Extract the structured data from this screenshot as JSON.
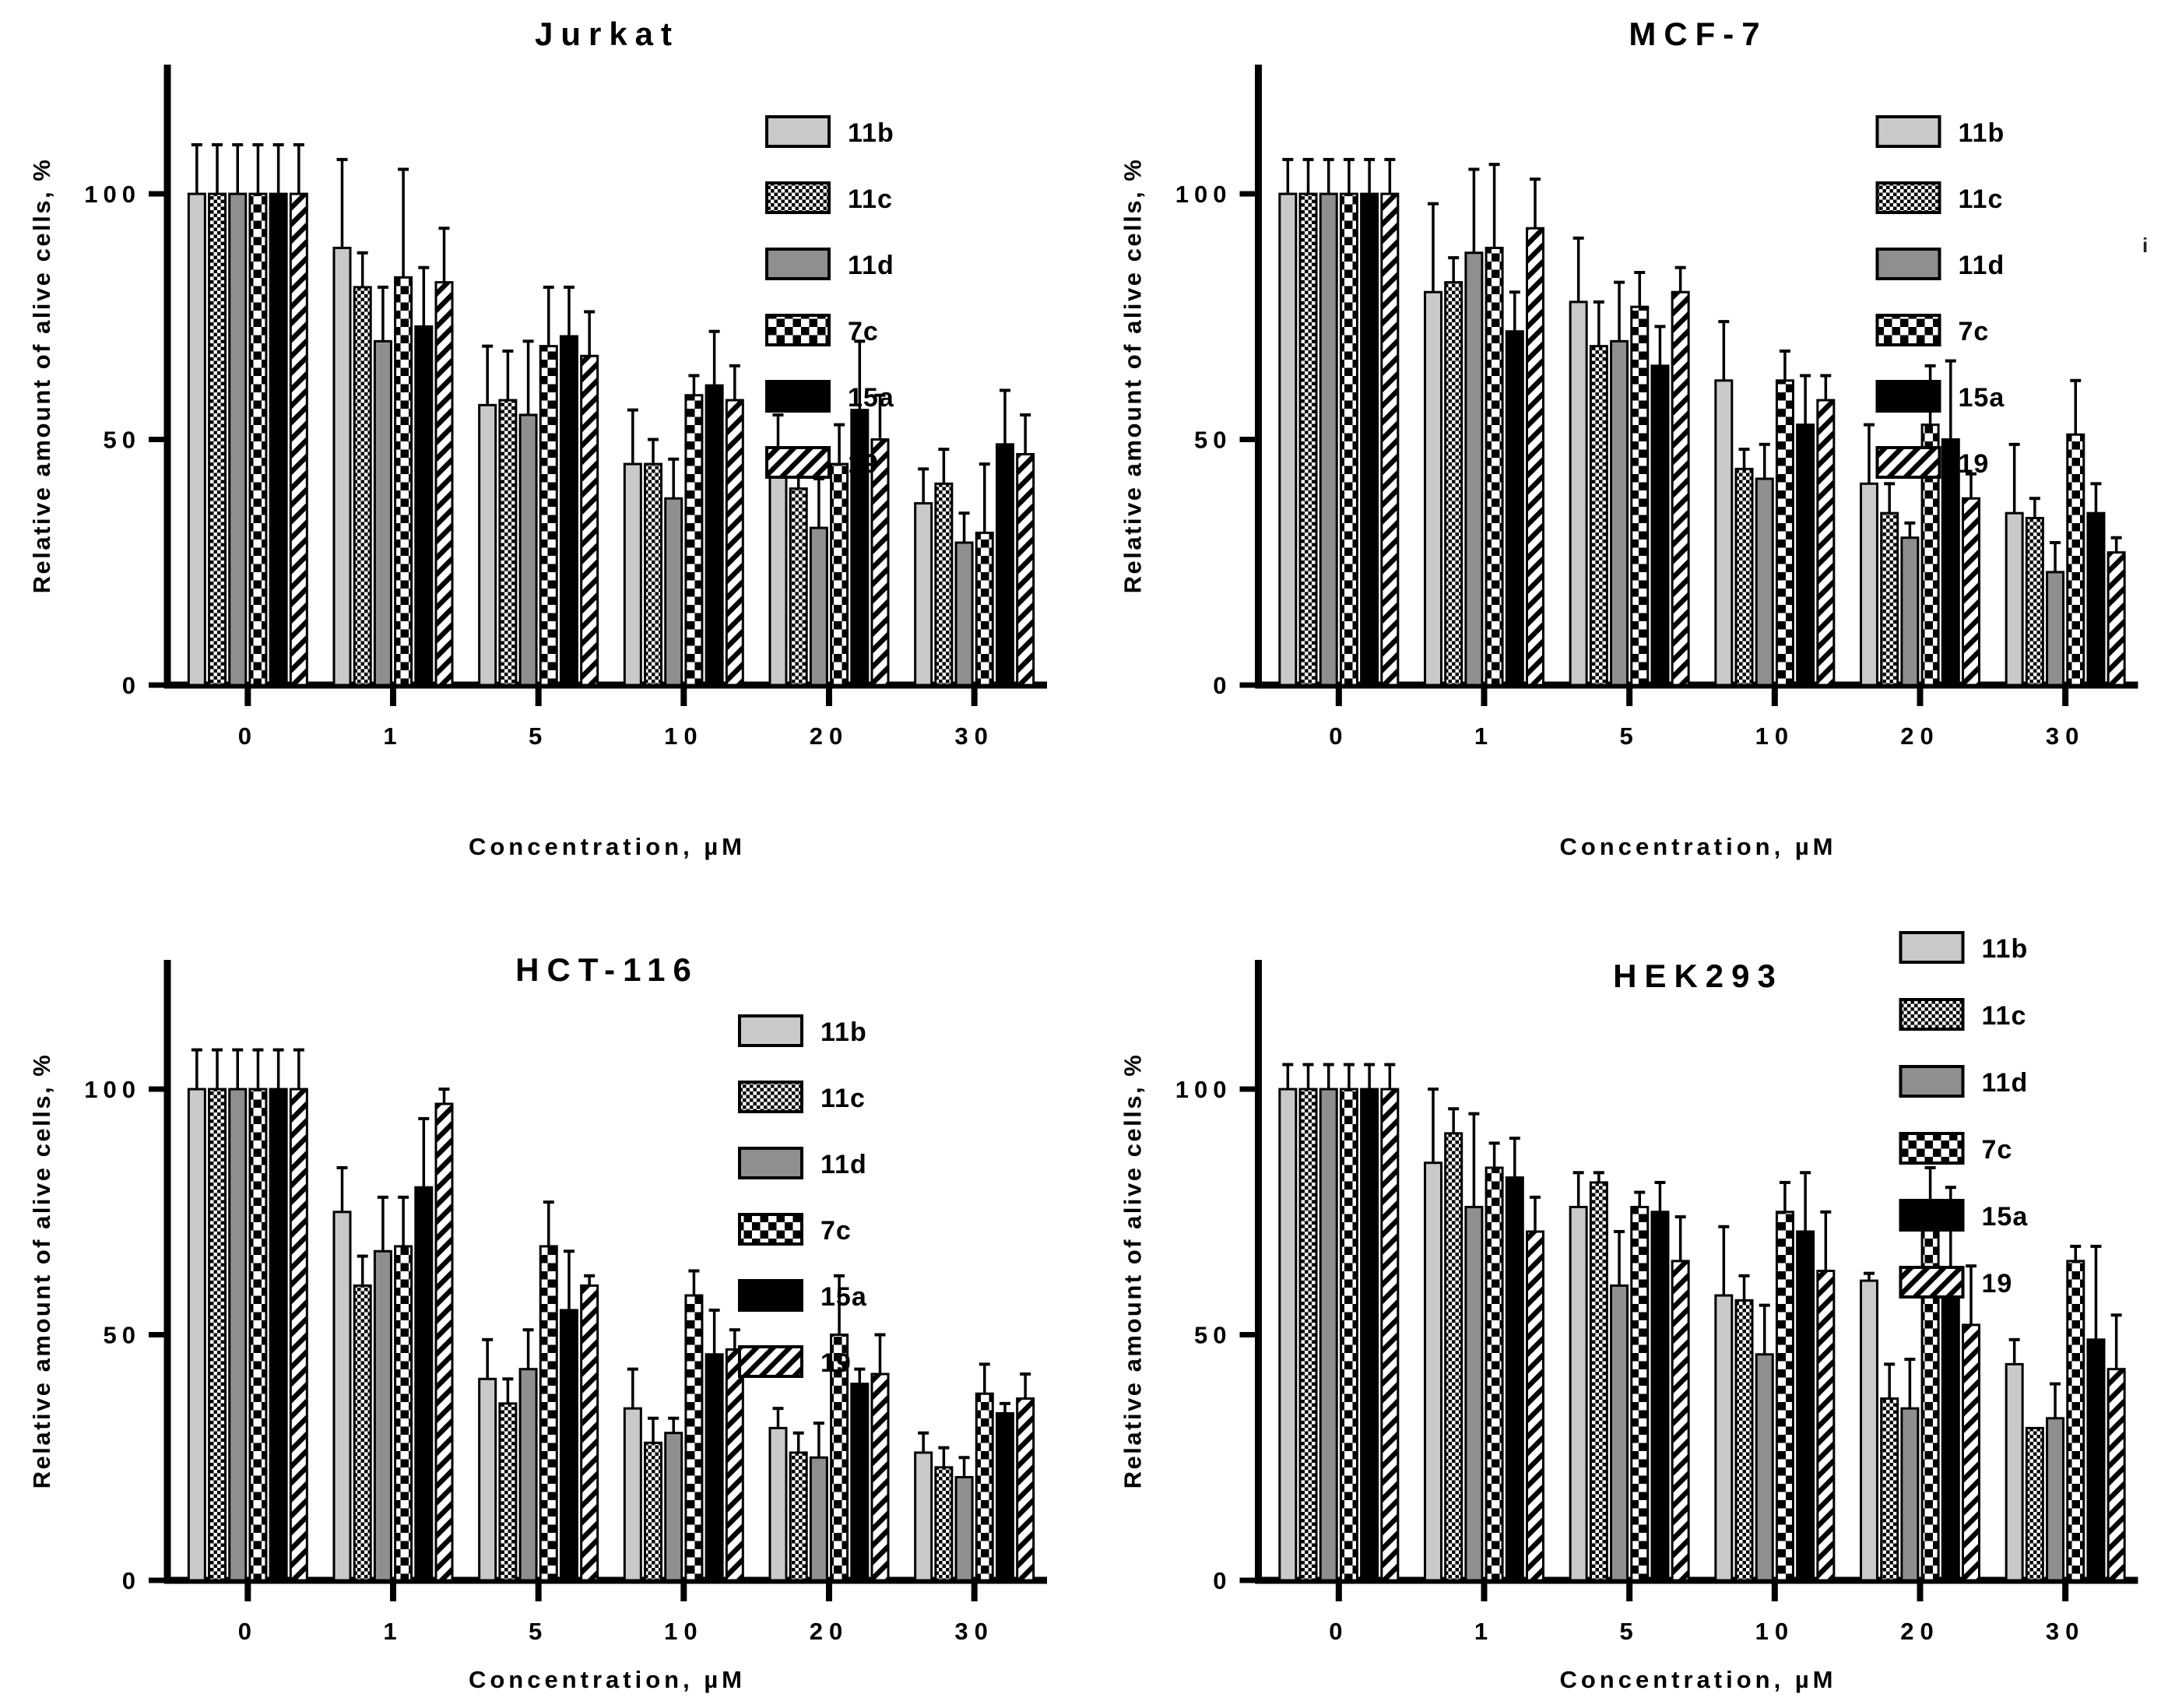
{
  "artifact": {
    "text": "i"
  },
  "colors": {
    "background": "#ffffff",
    "axis": "#000000",
    "bar_light_gray": "#c9c9c9",
    "bar_mid_gray": "#8f8f8f",
    "bar_black": "#000000",
    "pattern_ink": "#000000"
  },
  "chart_data": [
    {
      "type": "bar",
      "title": "Jurkat",
      "xlabel": "Concentration, µM",
      "ylabel": "Relative amount of alive cells, %",
      "ylim": [
        0,
        126
      ],
      "yticks": [
        0,
        50,
        100
      ],
      "grid": false,
      "legend_position": "top-right",
      "error_bars": true,
      "categories": [
        "0",
        "1",
        "5",
        "10",
        "20",
        "30"
      ],
      "series": [
        {
          "name": "11b",
          "pattern": "solid-light",
          "values": [
            100,
            89,
            57,
            45,
            44,
            37
          ],
          "errors": [
            10,
            18,
            12,
            11,
            11,
            7
          ]
        },
        {
          "name": "11c",
          "pattern": "checker-fine",
          "values": [
            100,
            81,
            58,
            45,
            40,
            41
          ],
          "errors": [
            10,
            7,
            10,
            5,
            5,
            7
          ]
        },
        {
          "name": "11d",
          "pattern": "solid-mid",
          "values": [
            100,
            70,
            55,
            38,
            32,
            29
          ],
          "errors": [
            10,
            11,
            15,
            8,
            10,
            6
          ]
        },
        {
          "name": "7c",
          "pattern": "checker-coarse",
          "values": [
            100,
            83,
            69,
            59,
            45,
            31
          ],
          "errors": [
            10,
            22,
            12,
            4,
            8,
            14
          ]
        },
        {
          "name": "15a",
          "pattern": "solid-black",
          "values": [
            100,
            73,
            71,
            61,
            56,
            49
          ],
          "errors": [
            10,
            12,
            10,
            11,
            14,
            11
          ]
        },
        {
          "name": "19",
          "pattern": "hatch-diagonal",
          "values": [
            100,
            82,
            67,
            58,
            50,
            47
          ],
          "errors": [
            10,
            11,
            9,
            7,
            9,
            8
          ]
        }
      ]
    },
    {
      "type": "bar",
      "title": "MCF-7",
      "xlabel": "Concentration, µM",
      "ylabel": "Relative amount of alive cells, %",
      "ylim": [
        0,
        126
      ],
      "yticks": [
        0,
        50,
        100
      ],
      "grid": false,
      "legend_position": "top-right",
      "error_bars": true,
      "categories": [
        "0",
        "1",
        "5",
        "10",
        "20",
        "30"
      ],
      "series": [
        {
          "name": "11b",
          "pattern": "solid-light",
          "values": [
            100,
            80,
            78,
            62,
            41,
            35
          ],
          "errors": [
            7,
            18,
            13,
            12,
            12,
            14
          ]
        },
        {
          "name": "11c",
          "pattern": "checker-fine",
          "values": [
            100,
            82,
            69,
            44,
            35,
            34
          ],
          "errors": [
            7,
            5,
            9,
            4,
            6,
            4
          ]
        },
        {
          "name": "11d",
          "pattern": "solid-mid",
          "values": [
            100,
            88,
            70,
            42,
            30,
            23
          ],
          "errors": [
            7,
            17,
            12,
            7,
            3,
            6
          ]
        },
        {
          "name": "7c",
          "pattern": "checker-coarse",
          "values": [
            100,
            89,
            77,
            62,
            53,
            51
          ],
          "errors": [
            7,
            17,
            7,
            6,
            12,
            11
          ]
        },
        {
          "name": "15a",
          "pattern": "solid-black",
          "values": [
            100,
            72,
            65,
            53,
            50,
            35
          ],
          "errors": [
            7,
            8,
            8,
            10,
            16,
            6
          ]
        },
        {
          "name": "19",
          "pattern": "hatch-diagonal",
          "values": [
            100,
            93,
            80,
            58,
            38,
            27
          ],
          "errors": [
            7,
            10,
            5,
            5,
            5,
            3
          ]
        }
      ]
    },
    {
      "type": "bar",
      "title": "HCT-116",
      "xlabel": "Concentration, µM",
      "ylabel": "Relative amount of alive cells, %",
      "ylim": [
        0,
        126
      ],
      "yticks": [
        0,
        50,
        100
      ],
      "grid": false,
      "legend_position": "top-right",
      "error_bars": true,
      "categories": [
        "0",
        "1",
        "5",
        "10",
        "20",
        "30"
      ],
      "series": [
        {
          "name": "11b",
          "pattern": "solid-light",
          "values": [
            100,
            75,
            41,
            35,
            31,
            26
          ],
          "errors": [
            8,
            9,
            8,
            8,
            4,
            4
          ]
        },
        {
          "name": "11c",
          "pattern": "checker-fine",
          "values": [
            100,
            60,
            36,
            28,
            26,
            23
          ],
          "errors": [
            8,
            6,
            5,
            5,
            4,
            4
          ]
        },
        {
          "name": "11d",
          "pattern": "solid-mid",
          "values": [
            100,
            67,
            43,
            30,
            25,
            21
          ],
          "errors": [
            8,
            11,
            8,
            3,
            7,
            4
          ]
        },
        {
          "name": "7c",
          "pattern": "checker-coarse",
          "values": [
            100,
            68,
            68,
            58,
            50,
            38
          ],
          "errors": [
            8,
            10,
            9,
            5,
            12,
            6
          ]
        },
        {
          "name": "15a",
          "pattern": "solid-black",
          "values": [
            100,
            80,
            55,
            46,
            40,
            34
          ],
          "errors": [
            8,
            14,
            12,
            9,
            3,
            2
          ]
        },
        {
          "name": "19",
          "pattern": "hatch-diagonal",
          "values": [
            100,
            97,
            60,
            47,
            42,
            37
          ],
          "errors": [
            8,
            3,
            2,
            4,
            8,
            5
          ]
        }
      ]
    },
    {
      "type": "bar",
      "title": "HEK293",
      "xlabel": "Concentration, µM",
      "ylabel": "Relative amount of alive cells, %",
      "ylim": [
        0,
        126
      ],
      "yticks": [
        0,
        50,
        100
      ],
      "grid": false,
      "legend_position": "top-right-high",
      "error_bars": true,
      "categories": [
        "0",
        "1",
        "5",
        "10",
        "20",
        "30"
      ],
      "series": [
        {
          "name": "11b",
          "pattern": "solid-light",
          "values": [
            100,
            85,
            76,
            58,
            61,
            44
          ],
          "errors": [
            5,
            15,
            7,
            14,
            1.5,
            5
          ]
        },
        {
          "name": "11c",
          "pattern": "checker-fine",
          "values": [
            100,
            91,
            81,
            57,
            37,
            31
          ],
          "errors": [
            5,
            5,
            2,
            5,
            7,
            0
          ]
        },
        {
          "name": "11d",
          "pattern": "solid-mid",
          "values": [
            100,
            76,
            60,
            46,
            35,
            33
          ],
          "errors": [
            5,
            19,
            11,
            10,
            10,
            7
          ]
        },
        {
          "name": "7c",
          "pattern": "checker-coarse",
          "values": [
            100,
            84,
            76,
            75,
            74,
            65
          ],
          "errors": [
            5,
            5,
            3,
            6,
            10,
            3
          ]
        },
        {
          "name": "15a",
          "pattern": "solid-black",
          "values": [
            100,
            82,
            75,
            71,
            60,
            49
          ],
          "errors": [
            5,
            8,
            6,
            12,
            20,
            19
          ]
        },
        {
          "name": "19",
          "pattern": "hatch-diagonal",
          "values": [
            100,
            71,
            65,
            63,
            52,
            43
          ],
          "errors": [
            5,
            7,
            9,
            12,
            12,
            11
          ]
        }
      ]
    }
  ]
}
